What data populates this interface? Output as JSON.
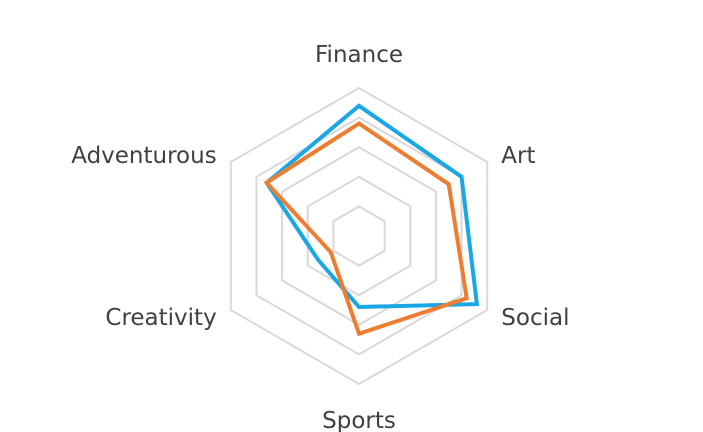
{
  "chart_data": {
    "type": "radar",
    "categories": [
      "Finance",
      "Art",
      "Social",
      "Sports",
      "Creativity",
      "Adventurous"
    ],
    "rlim": [
      0,
      5
    ],
    "grid_levels": 5,
    "grid": true,
    "legend": "none",
    "series": [
      {
        "values": [
          4.4,
          4.0,
          4.6,
          2.4,
          1.6,
          3.6
        ],
        "color": "#1aa7e6"
      },
      {
        "values": [
          3.8,
          3.5,
          4.2,
          3.3,
          1.1,
          3.6
        ],
        "color": "#ee7d31"
      }
    ],
    "grid_color": "#d9d9d9"
  }
}
